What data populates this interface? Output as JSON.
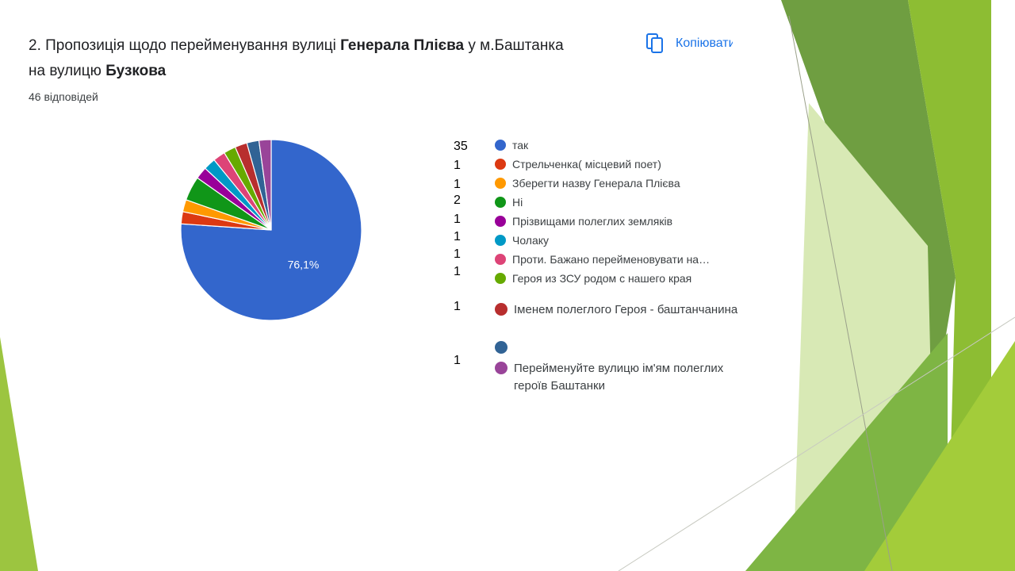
{
  "question": {
    "prefix": "2. Пропозиція щодо перейменування вулиці ",
    "street": "Генерала Плієва",
    "middle": "  у м.Баштанка",
    "line2": "на вулицю ",
    "new_name": "Бузкова"
  },
  "responses_label": "46 відповідей",
  "copy_label": "Копіювати",
  "colors": {
    "link_blue": "#1a73e8",
    "green_dark": "#6f9e41",
    "green_light": "#8dbd33",
    "green_pale": "#d8e9b5"
  },
  "chart_data": {
    "type": "pie",
    "title": "",
    "total": 46,
    "shown_percent_label": "76,1%",
    "slices": [
      {
        "label": "так",
        "count": 35,
        "color": "#3366cc"
      },
      {
        "label": "Стрельченка( місцевий поет)",
        "count": 1,
        "color": "#dc3912"
      },
      {
        "label": "Зберегти назву Генерала Плієва",
        "count": 1,
        "color": "#ff9900"
      },
      {
        "label": "Ні",
        "count": 2,
        "color": "#109618"
      },
      {
        "label": "Прізвищами полеглих земляків",
        "count": 1,
        "color": "#990099"
      },
      {
        "label": "Чолаку",
        "count": 1,
        "color": "#0099c6"
      },
      {
        "label": "Проти. Бажано перейменовувати на…",
        "count": 1,
        "color": "#dd4477"
      },
      {
        "label": "Героя из ЗСУ родом с нашего края",
        "count": 1,
        "color": "#66aa00"
      },
      {
        "label": "Іменем полеглого Героя - баштанчанина",
        "count": 1,
        "color": "#b82e2e"
      },
      {
        "label": "",
        "count": null,
        "color": "#316395"
      },
      {
        "label": "Перейменуйте вулицю ім'ям полеглих героїв Баштанки",
        "count": 1,
        "color": "#994499"
      }
    ]
  }
}
